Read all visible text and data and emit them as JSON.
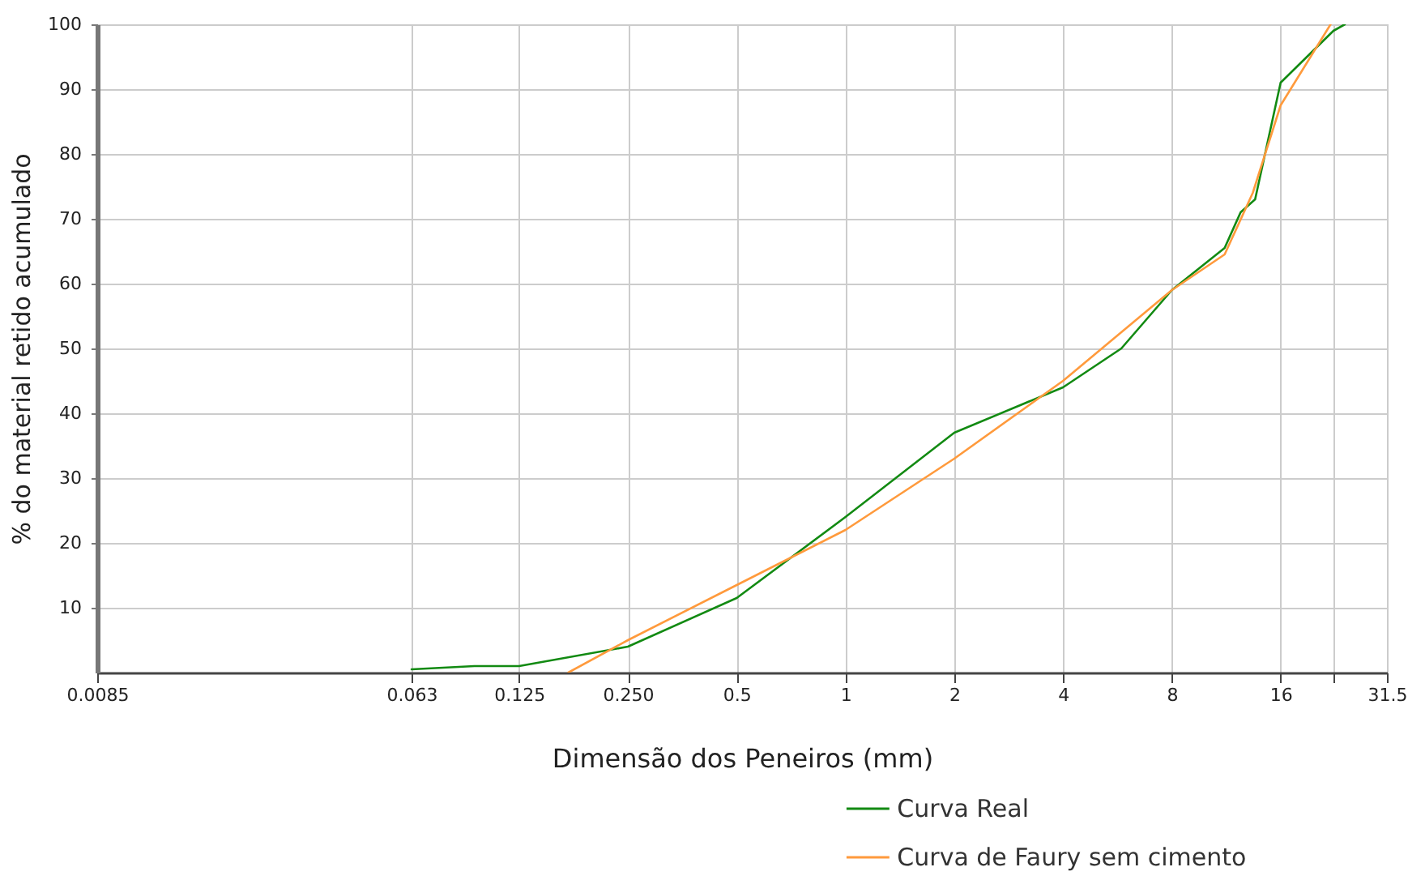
{
  "chart_data": {
    "type": "line",
    "xlabel": "Dimensão dos Peneiros (mm)",
    "ylabel": "% do material retido acumulado",
    "series": [
      {
        "name": "Curva Real",
        "color": "#128a12",
        "x": [
          0.063,
          0.094,
          0.125,
          0.25,
          0.5,
          1,
          2,
          4,
          5.8,
          8,
          11.2,
          12.4,
          13.6,
          16,
          22.4,
          24.1
        ],
        "values": [
          0.5,
          1,
          1,
          4,
          11.5,
          24,
          37,
          44,
          50,
          59,
          65.5,
          71,
          73,
          91,
          99,
          100
        ]
      },
      {
        "name": "Curva de Faury sem cimento",
        "color": "#ff9a3c",
        "x": [
          0.171,
          0.25,
          0.5,
          1,
          2,
          4,
          8,
          11.2,
          13.4,
          16,
          22
        ],
        "values": [
          0,
          5,
          13.5,
          22,
          33,
          45,
          59,
          64.5,
          74,
          87.5,
          100
        ]
      }
    ],
    "xlim": [
      0.0085,
      31.5
    ],
    "xticks": [
      0.0085,
      0.063,
      0.125,
      {
        "value": 0.25,
        "label": "0.250"
      },
      0.5,
      1,
      2,
      4,
      8,
      16,
      {
        "value": 22.4,
        "label": null
      },
      31.5
    ],
    "ylim": [
      0,
      100
    ],
    "yticks": [
      10,
      20,
      30,
      40,
      50,
      60,
      70,
      80,
      90,
      100
    ],
    "grid": true,
    "legend": "bottom right",
    "line_style": "solid",
    "marker": "none",
    "log": "x"
  }
}
